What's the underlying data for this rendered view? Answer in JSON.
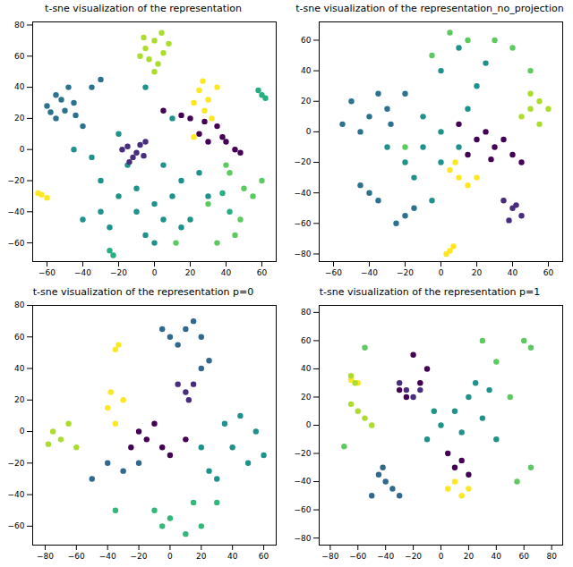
{
  "chart_data": [
    {
      "type": "scatter",
      "title": "t-sne visualization of the representation",
      "xlim": [
        -68,
        68
      ],
      "ylim": [
        -72,
        82
      ],
      "xticks": [
        -60,
        -40,
        -20,
        0,
        20,
        40,
        60
      ],
      "yticks": [
        -60,
        -40,
        -20,
        0,
        20,
        40,
        60,
        80
      ],
      "series": [
        {
          "color": "#2c728e",
          "x": [
            -55,
            -50,
            -45,
            -55,
            -48,
            -60,
            -40,
            -30,
            -35,
            -52,
            -58,
            -44
          ],
          "y": [
            35,
            25,
            30,
            20,
            40,
            28,
            15,
            45,
            40,
            32,
            24,
            22
          ]
        },
        {
          "color": "#21918c",
          "x": [
            -20,
            -10,
            0,
            10,
            20,
            -25,
            -5,
            15,
            30,
            -30,
            -15,
            5,
            0,
            -40,
            -35,
            -20,
            10,
            -5,
            25,
            -10,
            5,
            -30,
            15,
            -45
          ],
          "y": [
            -30,
            -40,
            -35,
            -30,
            -45,
            -50,
            -55,
            -20,
            -30,
            -20,
            -10,
            -10,
            -60,
            -45,
            -5,
            10,
            20,
            40,
            -15,
            -25,
            -45,
            -40,
            -50,
            0
          ]
        },
        {
          "color": "#472d7b",
          "x": [
            -15,
            -10,
            -5,
            -12,
            -8,
            -18,
            -14,
            -6
          ],
          "y": [
            2,
            -2,
            5,
            -5,
            3,
            0,
            -8,
            -4
          ]
        },
        {
          "color": "#440154",
          "x": [
            20,
            30,
            40,
            45,
            25,
            15,
            5,
            35,
            48,
            28,
            38
          ],
          "y": [
            20,
            5,
            5,
            0,
            10,
            22,
            25,
            15,
            -2,
            18,
            8
          ]
        },
        {
          "color": "#fde725",
          "x": [
            25,
            30,
            28,
            35,
            22,
            32,
            -63,
            -60,
            -65,
            22,
            27
          ],
          "y": [
            38,
            32,
            25,
            40,
            30,
            20,
            -29,
            -31,
            -28,
            8,
            44
          ]
        },
        {
          "color": "#addc30",
          "x": [
            -5,
            0,
            5,
            -3,
            2,
            8,
            -8,
            4,
            0,
            -6
          ],
          "y": [
            65,
            70,
            62,
            58,
            55,
            68,
            60,
            75,
            50,
            72
          ]
        },
        {
          "color": "#5ec962",
          "x": [
            40,
            50,
            45,
            35,
            55,
            60,
            12,
            48,
            30,
            42
          ],
          "y": [
            -10,
            -25,
            -55,
            -60,
            -30,
            -20,
            -60,
            -45,
            -35,
            -15
          ]
        },
        {
          "color": "#28ae80",
          "x": [
            60,
            58,
            62,
            42,
            38,
            -25,
            -23
          ],
          "y": [
            35,
            38,
            33,
            -40,
            -28,
            -65,
            -68
          ]
        }
      ]
    },
    {
      "type": "scatter",
      "title": "t-sne visualization of the representation_no_projection",
      "xlim": [
        -68,
        68
      ],
      "ylim": [
        -85,
        72
      ],
      "xticks": [
        -60,
        -40,
        -20,
        0,
        20,
        40,
        60
      ],
      "yticks": [
        -80,
        -60,
        -40,
        -20,
        0,
        20,
        40,
        60
      ],
      "series": [
        {
          "color": "#2c728e",
          "x": [
            -40,
            -50,
            -30,
            -45,
            -20,
            -55,
            -35,
            -40,
            -35,
            -45,
            -20,
            -25,
            -15,
            -28
          ],
          "y": [
            10,
            20,
            15,
            0,
            25,
            5,
            25,
            -40,
            -45,
            -35,
            -55,
            -60,
            -50,
            5
          ]
        },
        {
          "color": "#21918c",
          "x": [
            0,
            -10,
            10,
            0,
            -20,
            -10,
            20,
            0,
            10,
            25,
            -15,
            -5,
            15,
            -30
          ],
          "y": [
            0,
            -10,
            -10,
            -20,
            -20,
            10,
            30,
            40,
            55,
            45,
            -30,
            -45,
            15,
            -10
          ]
        },
        {
          "color": "#472d7b",
          "x": [
            40,
            35,
            45,
            38,
            42
          ],
          "y": [
            -50,
            -45,
            -55,
            -58,
            -48
          ]
        },
        {
          "color": "#440154",
          "x": [
            20,
            30,
            40,
            45,
            25,
            10,
            35,
            15,
            28
          ],
          "y": [
            -5,
            -10,
            -15,
            -20,
            0,
            5,
            -5,
            -15,
            -18
          ]
        },
        {
          "color": "#fde725",
          "x": [
            10,
            5,
            15,
            8,
            20,
            5,
            7,
            3
          ],
          "y": [
            -30,
            -25,
            -35,
            -20,
            -30,
            -78,
            -75,
            -80
          ]
        },
        {
          "color": "#addc30",
          "x": [
            50,
            55,
            45,
            60,
            50,
            55
          ],
          "y": [
            15,
            20,
            10,
            15,
            25,
            5
          ]
        },
        {
          "color": "#5ec962",
          "x": [
            30,
            40,
            15,
            -5,
            -20,
            50,
            5
          ],
          "y": [
            60,
            55,
            60,
            50,
            -10,
            40,
            65
          ]
        }
      ]
    },
    {
      "type": "scatter",
      "title": "t-sne visualization of the representation p=0",
      "xlim": [
        -88,
        68
      ],
      "ylim": [
        -72,
        80
      ],
      "xticks": [
        -80,
        -60,
        -40,
        -20,
        0,
        20,
        40,
        60
      ],
      "yticks": [
        -60,
        -40,
        -20,
        0,
        20,
        40,
        60,
        80
      ],
      "series": [
        {
          "color": "#31688e",
          "x": [
            10,
            0,
            15,
            5,
            20,
            -5,
            25,
            20,
            -40,
            -30,
            -50,
            -20
          ],
          "y": [
            65,
            60,
            70,
            55,
            60,
            65,
            45,
            40,
            -20,
            -25,
            -30,
            -20
          ]
        },
        {
          "color": "#472d7b",
          "x": [
            10,
            15,
            5,
            12
          ],
          "y": [
            25,
            30,
            30,
            20
          ]
        },
        {
          "color": "#fde725",
          "x": [
            -40,
            -35,
            -30,
            -38,
            -35,
            -33
          ],
          "y": [
            15,
            5,
            20,
            25,
            52,
            55
          ]
        },
        {
          "color": "#addc30",
          "x": [
            -75,
            -70,
            -65,
            -78,
            -60
          ],
          "y": [
            0,
            -5,
            5,
            -8,
            -10
          ]
        },
        {
          "color": "#440154",
          "x": [
            -20,
            -15,
            -10,
            -25,
            0,
            10,
            -5
          ],
          "y": [
            0,
            -5,
            5,
            -10,
            -15,
            -5,
            -10
          ]
        },
        {
          "color": "#21918c",
          "x": [
            20,
            40,
            50,
            30,
            55,
            45,
            25,
            60,
            35
          ],
          "y": [
            -10,
            -10,
            -20,
            -30,
            0,
            10,
            -25,
            -15,
            5
          ]
        },
        {
          "color": "#35b779",
          "x": [
            -10,
            -5,
            0,
            10,
            20,
            15,
            -35,
            30
          ],
          "y": [
            -50,
            -60,
            -55,
            -65,
            -60,
            -45,
            -50,
            -45
          ]
        }
      ]
    },
    {
      "type": "scatter",
      "title": "t-sne visualization of the representation p=1",
      "xlim": [
        -88,
        88
      ],
      "ylim": [
        -85,
        85
      ],
      "xticks": [
        -80,
        -60,
        -40,
        -20,
        0,
        20,
        40,
        60,
        80
      ],
      "yticks": [
        -80,
        -60,
        -40,
        -20,
        0,
        20,
        40,
        60,
        80
      ],
      "series": [
        {
          "color": "#31688e",
          "x": [
            -40,
            -45,
            -35,
            -50,
            -30,
            -42
          ],
          "y": [
            -40,
            -35,
            -45,
            -50,
            -50,
            -30
          ]
        },
        {
          "color": "#21918c",
          "x": [
            0,
            10,
            20,
            30,
            -10,
            40,
            15,
            25,
            -5,
            35
          ],
          "y": [
            0,
            10,
            20,
            5,
            -10,
            -10,
            -5,
            30,
            10,
            25
          ]
        },
        {
          "color": "#472d7b",
          "x": [
            -25,
            -20,
            -30,
            -15
          ],
          "y": [
            25,
            20,
            30,
            25
          ]
        },
        {
          "color": "#440154",
          "x": [
            -20,
            -10,
            -15,
            -25,
            -30,
            10,
            15,
            5,
            20
          ],
          "y": [
            50,
            40,
            30,
            20,
            25,
            -30,
            -25,
            -20,
            -35
          ]
        },
        {
          "color": "#fde725",
          "x": [
            10,
            15,
            5,
            20,
            -60,
            -65
          ],
          "y": [
            -40,
            -50,
            -45,
            -45,
            30,
            32
          ]
        },
        {
          "color": "#addc30",
          "x": [
            -60,
            -55,
            -65,
            -50,
            -62,
            -65
          ],
          "y": [
            10,
            5,
            15,
            0,
            30,
            35
          ]
        },
        {
          "color": "#5ec962",
          "x": [
            50,
            60,
            40,
            55,
            65,
            30,
            -55,
            -70,
            65
          ],
          "y": [
            20,
            60,
            45,
            -40,
            -30,
            60,
            55,
            -15,
            55
          ]
        }
      ]
    }
  ]
}
